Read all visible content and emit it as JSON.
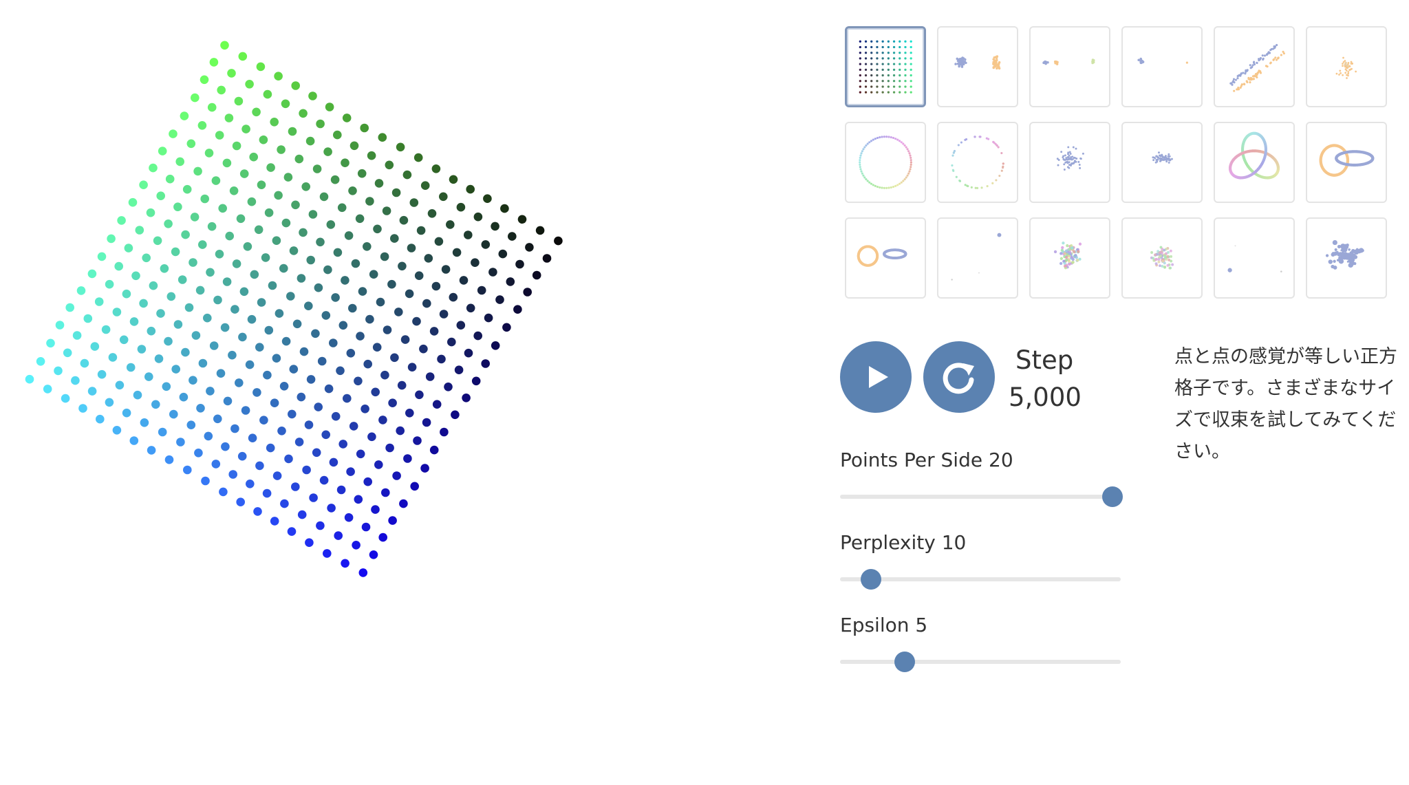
{
  "description": "点と点の感覚が等しい正方格子です。さまざまなサイズで収束を試してみてください。",
  "step": {
    "label": "Step",
    "value": "5,000"
  },
  "controls": {
    "play_icon": "play-icon",
    "restart_icon": "restart-icon"
  },
  "accent_color": "#5b82b1",
  "sliders": [
    {
      "name": "Points Per Side",
      "value": "20",
      "fraction": 0.97
    },
    {
      "name": "Perplexity",
      "value": "10",
      "fraction": 0.11
    },
    {
      "name": "Epsilon",
      "value": "5",
      "fraction": 0.23
    }
  ],
  "selected_dataset_index": 0,
  "grid_points_per_side": 20,
  "dataset_thumbnails": [
    "grid",
    "two-clusters",
    "three-clusters",
    "two-distant-clusters",
    "two-long-lines",
    "cluster-in-cluster",
    "circle-evenly-spaced",
    "circle-random",
    "gaussian-cloud",
    "ellipsoidal-cloud",
    "trefoil-knot",
    "linked-rings",
    "unlinked-rings",
    "orthogonal-steps",
    "random-walk",
    "random-jump",
    "equally-spaced-subclusters",
    "uneven-clusters"
  ]
}
